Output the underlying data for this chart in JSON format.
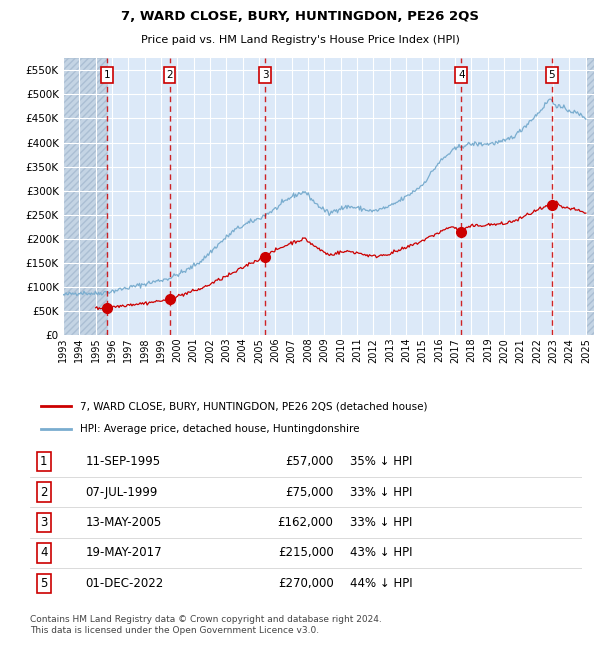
{
  "title": "7, WARD CLOSE, BURY, HUNTINGDON, PE26 2QS",
  "subtitle": "Price paid vs. HM Land Registry's House Price Index (HPI)",
  "ylim": [
    0,
    575000
  ],
  "yticks": [
    0,
    50000,
    100000,
    150000,
    200000,
    250000,
    300000,
    350000,
    400000,
    450000,
    500000,
    550000
  ],
  "ytick_labels": [
    "£0",
    "£50K",
    "£100K",
    "£150K",
    "£200K",
    "£250K",
    "£300K",
    "£350K",
    "£400K",
    "£450K",
    "£500K",
    "£550K"
  ],
  "xlim_start": 1993.0,
  "xlim_end": 2025.5,
  "xticks": [
    1993,
    1994,
    1995,
    1996,
    1997,
    1998,
    1999,
    2000,
    2001,
    2002,
    2003,
    2004,
    2005,
    2006,
    2007,
    2008,
    2009,
    2010,
    2011,
    2012,
    2013,
    2014,
    2015,
    2016,
    2017,
    2018,
    2019,
    2020,
    2021,
    2022,
    2023,
    2024,
    2025
  ],
  "background_color": "#ffffff",
  "plot_bg_color": "#dce9f8",
  "hatch_color": "#c4d4e4",
  "grid_color": "#ffffff",
  "red_line_color": "#cc0000",
  "blue_line_color": "#7aadcf",
  "dashed_line_color": "#cc0000",
  "sale_points": [
    {
      "year": 1995.7,
      "price": 57000,
      "label": "1"
    },
    {
      "year": 1999.52,
      "price": 75000,
      "label": "2"
    },
    {
      "year": 2005.37,
      "price": 162000,
      "label": "3"
    },
    {
      "year": 2017.38,
      "price": 215000,
      "label": "4"
    },
    {
      "year": 2022.92,
      "price": 270000,
      "label": "5"
    }
  ],
  "legend_entries": [
    "7, WARD CLOSE, BURY, HUNTINGDON, PE26 2QS (detached house)",
    "HPI: Average price, detached house, Huntingdonshire"
  ],
  "table_rows": [
    {
      "num": "1",
      "date": "11-SEP-1995",
      "price": "£57,000",
      "hpi": "35% ↓ HPI"
    },
    {
      "num": "2",
      "date": "07-JUL-1999",
      "price": "£75,000",
      "hpi": "33% ↓ HPI"
    },
    {
      "num": "3",
      "date": "13-MAY-2005",
      "price": "£162,000",
      "hpi": "33% ↓ HPI"
    },
    {
      "num": "4",
      "date": "19-MAY-2017",
      "price": "£215,000",
      "hpi": "43% ↓ HPI"
    },
    {
      "num": "5",
      "date": "01-DEC-2022",
      "price": "£270,000",
      "hpi": "44% ↓ HPI"
    }
  ],
  "footer": "Contains HM Land Registry data © Crown copyright and database right 2024.\nThis data is licensed under the Open Government Licence v3.0."
}
